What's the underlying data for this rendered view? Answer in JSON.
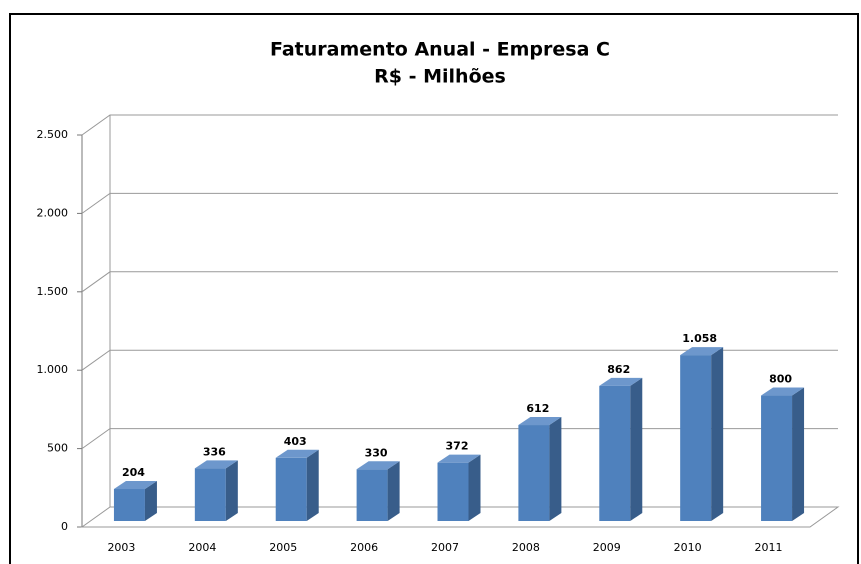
{
  "chart_data": {
    "type": "bar3d",
    "title": "Faturamento Anual - Empresa C",
    "subtitle": "R$ - Milhões",
    "categories": [
      "2003",
      "2004",
      "2005",
      "2006",
      "2007",
      "2008",
      "2009",
      "2010",
      "2011"
    ],
    "values": [
      204,
      336,
      403,
      330,
      372,
      612,
      862,
      1058,
      800
    ],
    "value_labels": [
      "204",
      "336",
      "403",
      "330",
      "372",
      "612",
      "862",
      "1.058",
      "800"
    ],
    "color": "#4f81bd",
    "ylim": [
      0,
      2500
    ],
    "yticks": [
      0,
      500,
      {
        "value": 1000,
        "label": "1.000"
      },
      {
        "value": 1500,
        "label": "1.500"
      },
      {
        "value": 2000,
        "label": "2.000"
      },
      {
        "value": 2500,
        "label": "2.500"
      }
    ],
    "grid": true
  }
}
